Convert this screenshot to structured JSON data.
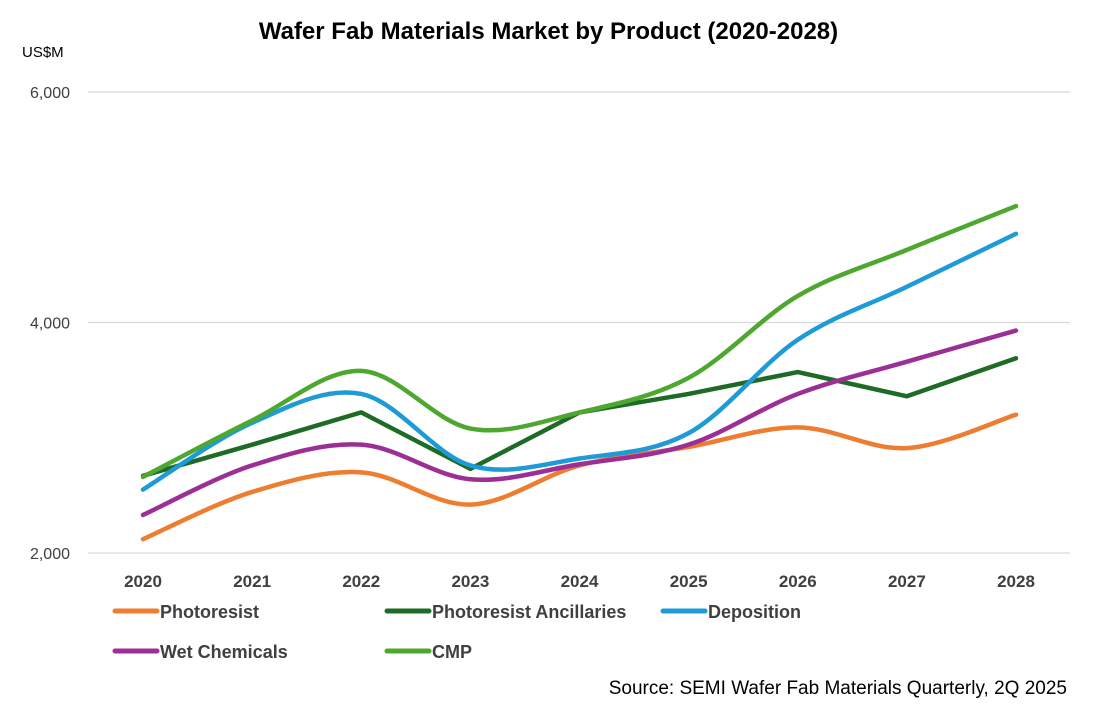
{
  "chart_data": {
    "type": "line",
    "title": "Wafer Fab Materials Market by Product (2020-2028)",
    "ylabel": "US$M",
    "xlabel": "",
    "source": "Source: SEMI Wafer Fab Materials Quarterly, 2Q 2025",
    "categories": [
      "2020",
      "2021",
      "2022",
      "2023",
      "2024",
      "2025",
      "2026",
      "2027",
      "2028"
    ],
    "ylim": [
      2000,
      6000
    ],
    "yticks": [
      2000,
      4000,
      6000
    ],
    "ytick_labels": [
      "2,000",
      "4,000",
      "6,000"
    ],
    "grid": true,
    "legend_position": "bottom",
    "series": [
      {
        "name": "Photoresist",
        "color": "#ED7D31",
        "smooth": true,
        "values": [
          2120,
          2530,
          2700,
          2420,
          2760,
          2920,
          3090,
          2910,
          3200
        ]
      },
      {
        "name": "Photoresist Ancillaries",
        "color": "#1E6B25",
        "smooth": false,
        "values": [
          2670,
          2940,
          3220,
          2730,
          3220,
          3380,
          3570,
          3360,
          3690
        ]
      },
      {
        "name": "Deposition",
        "color": "#1E9BD7",
        "smooth": true,
        "values": [
          2550,
          3130,
          3380,
          2760,
          2820,
          3040,
          3850,
          4310,
          4770
        ]
      },
      {
        "name": "Wet Chemicals",
        "color": "#9C2F96",
        "smooth": true,
        "values": [
          2330,
          2760,
          2940,
          2640,
          2770,
          2940,
          3380,
          3660,
          3930
        ]
      },
      {
        "name": "CMP",
        "color": "#4EA72E",
        "smooth": true,
        "values": [
          2660,
          3150,
          3580,
          3080,
          3220,
          3520,
          4230,
          4630,
          5010
        ]
      }
    ]
  }
}
